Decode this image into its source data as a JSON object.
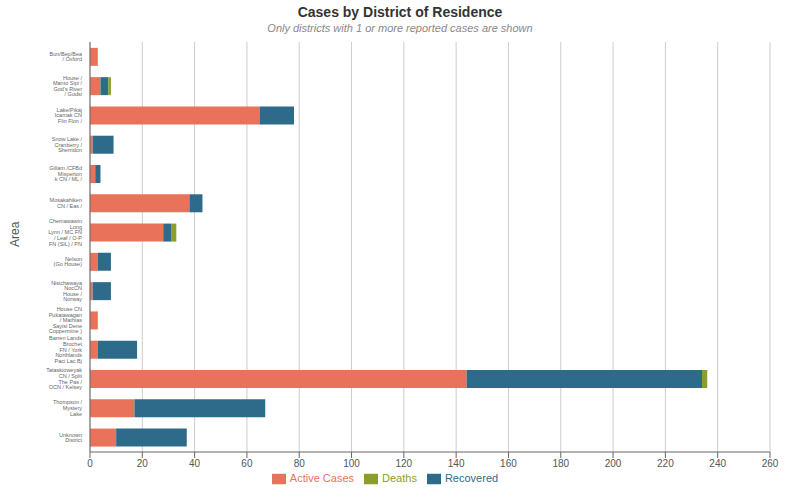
{
  "chart_data": {
    "type": "bar",
    "orientation": "horizontal",
    "stacked": true,
    "title": "Cases by District of Residence",
    "subtitle": "Only districts with 1 or more reported cases are shown",
    "ylabel": "Area",
    "categories": [
      "Bun/Bep/Bea\n/ Oxford",
      "House /\nManto Sipi /\nGod's River\n/ Godsi",
      "Lake/Pikaj\nIcamak CN\nFlin Flon /",
      "Snow Lake /\nCranberry /\nSherridon",
      "Gillam /CFBd\nMisperton\nk CN / ML /",
      "Mosakahiken\nCN / Eas /",
      "Chemawawin\nLong\nLynn / MC FN\n/ Leaf / O-P\nFN (SIL) / PN",
      "Nelson\n(Go House)",
      "Nisichawaya\nNocCN\nHouse /\nNorway",
      "House CN\nPukatawagan\n/ Mathias\nSayisi Dene\nCoppermine )",
      "Barren Lands\nBrochet\nFN / York\nNorthlands\nPaci Lac Bj",
      "Tataskioweyak\nCN / Split\nThe Pas /\nOCN / Kelsey",
      "Thompson /\nMystery\nLake",
      "Unknown\nDistrict"
    ],
    "series": [
      {
        "name": "Active Cases",
        "color": "#E8735A",
        "values": [
          3,
          4,
          65,
          1,
          2,
          38,
          28,
          3,
          1,
          3,
          3,
          144,
          17,
          10
        ]
      },
      {
        "name": "Recovered",
        "color": "#2E6B8A",
        "values": [
          0,
          3,
          13,
          8,
          2,
          5,
          3,
          5,
          7,
          0,
          15,
          90,
          50,
          27
        ]
      },
      {
        "name": "Deaths",
        "color": "#8B9E2A",
        "values": [
          0,
          1,
          0,
          0,
          0,
          0,
          2,
          0,
          0,
          0,
          0,
          2,
          0,
          0
        ]
      }
    ],
    "xlim": [
      0,
      260
    ],
    "xticks": [
      0,
      20,
      40,
      60,
      80,
      100,
      120,
      140,
      160,
      180,
      200,
      220,
      240,
      260
    ],
    "grid": true,
    "legend": "bottom"
  }
}
